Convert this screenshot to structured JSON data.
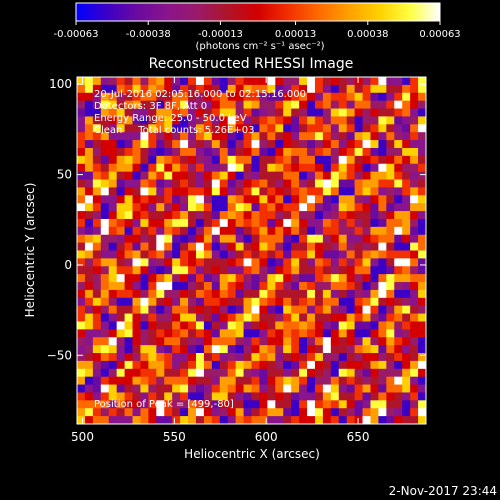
{
  "colorbar": {
    "tick_labels": [
      "-0.00063",
      "-0.00038",
      "-0.00013",
      "0.00013",
      "0.00038",
      "0.00063"
    ],
    "tick_values": [
      -0.00063,
      -0.00038,
      -0.00013,
      0.00013,
      0.00038,
      0.00063
    ],
    "range": [
      -0.00063,
      0.00063
    ],
    "units_label": "(photons cm⁻² s⁻¹ asec⁻²)",
    "colormap": [
      "#0000ff",
      "#3a00c8",
      "#6a0aa0",
      "#8a148c",
      "#9a1a6a",
      "#b0142a",
      "#d40000",
      "#f23000",
      "#ff6a00",
      "#ffa000",
      "#ffd000",
      "#ffff40",
      "#ffffff"
    ]
  },
  "chart_data": {
    "type": "heatmap",
    "title": "Reconstructed RHESSI Image",
    "xlabel": "Heliocentric X (arcsec)",
    "ylabel": "Heliocentric Y (arcsec)",
    "xlim": [
      497,
      687
    ],
    "ylim": [
      -88,
      104
    ],
    "x_ticks": [
      500,
      550,
      600,
      650
    ],
    "y_ticks": [
      -50,
      0,
      50,
      100
    ],
    "x_tick_labels": [
      "500",
      "550",
      "600",
      "650"
    ],
    "y_tick_labels": [
      "−50",
      "0",
      "50",
      "100"
    ],
    "annotations": [
      "20-Jul-2016 02:05:16.000 to 02:15:16.000",
      "Detectors: 3F 8F, Att 0",
      "Energy Range: 25.0 - 50.0 keV",
      "Clean     Total counts: 5.26E+03"
    ],
    "peak_label": "Position of Peak = [499,-80]",
    "peak_position": [
      499,
      -80
    ],
    "grid": false
  },
  "footer": {
    "timestamp": "2-Nov-2017 23:44"
  }
}
